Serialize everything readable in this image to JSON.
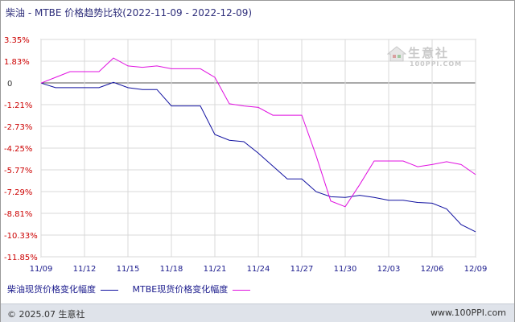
{
  "title": "柴油 - MTBE 价格趋势比较(2022-11-09 - 2022-12-09)",
  "watermark": {
    "name": "生意社",
    "site": "100PPI.COM"
  },
  "footer": {
    "copyright": "© 2025.07 生意社",
    "site": "www.100PPI.com"
  },
  "colors": {
    "diesel": "#1010a0",
    "mtbe": "#e010e0",
    "grid": "#d8d8d8",
    "zero": "#555555",
    "ytick": "#cc0000"
  },
  "chart_data": {
    "type": "line",
    "x": [
      "11/09",
      "11/10",
      "11/11",
      "11/12",
      "11/13",
      "11/14",
      "11/15",
      "11/16",
      "11/17",
      "11/18",
      "11/19",
      "11/20",
      "11/21",
      "11/22",
      "11/23",
      "11/24",
      "11/25",
      "11/26",
      "11/27",
      "11/28",
      "11/29",
      "11/30",
      "12/01",
      "12/02",
      "12/03",
      "12/04",
      "12/05",
      "12/06",
      "12/07",
      "12/08",
      "12/09"
    ],
    "xticks": [
      "11/09",
      "11/12",
      "11/15",
      "11/18",
      "11/21",
      "11/24",
      "11/27",
      "11/30",
      "12/03",
      "12/06",
      "12/09"
    ],
    "yticks": [
      "3.35%",
      "1.83%",
      "0",
      "-1.21%",
      "-2.73%",
      "-4.25%",
      "-5.77%",
      "-7.29%",
      "-8.81%",
      "-10.33%",
      "-11.85%"
    ],
    "ylim": [
      -11.85,
      3.35
    ],
    "grid": true,
    "legend_position": "bottom",
    "series": [
      {
        "name": "柴油现货价格变化幅度",
        "values": [
          0.3,
          -0.02,
          -0.02,
          -0.02,
          -0.02,
          0.35,
          -0.02,
          -0.15,
          -0.15,
          -1.3,
          -1.3,
          -1.3,
          -3.3,
          -3.7,
          -3.8,
          -4.6,
          -5.5,
          -6.4,
          -6.4,
          -7.3,
          -7.65,
          -7.7,
          -7.55,
          -7.7,
          -7.9,
          -7.9,
          -8.05,
          -8.1,
          -8.5,
          -9.6,
          -10.1
        ]
      },
      {
        "name": "MTBE现货价格变化幅度",
        "values": [
          0.3,
          0.7,
          1.1,
          1.1,
          1.1,
          2.05,
          1.5,
          1.4,
          1.5,
          1.3,
          1.3,
          1.3,
          0.7,
          -1.15,
          -1.3,
          -1.4,
          -1.95,
          -1.95,
          -1.95,
          -4.8,
          -7.95,
          -8.35,
          -6.8,
          -5.15,
          -5.15,
          -5.15,
          -5.55,
          -5.4,
          -5.2,
          -5.4,
          -6.1
        ]
      }
    ]
  }
}
